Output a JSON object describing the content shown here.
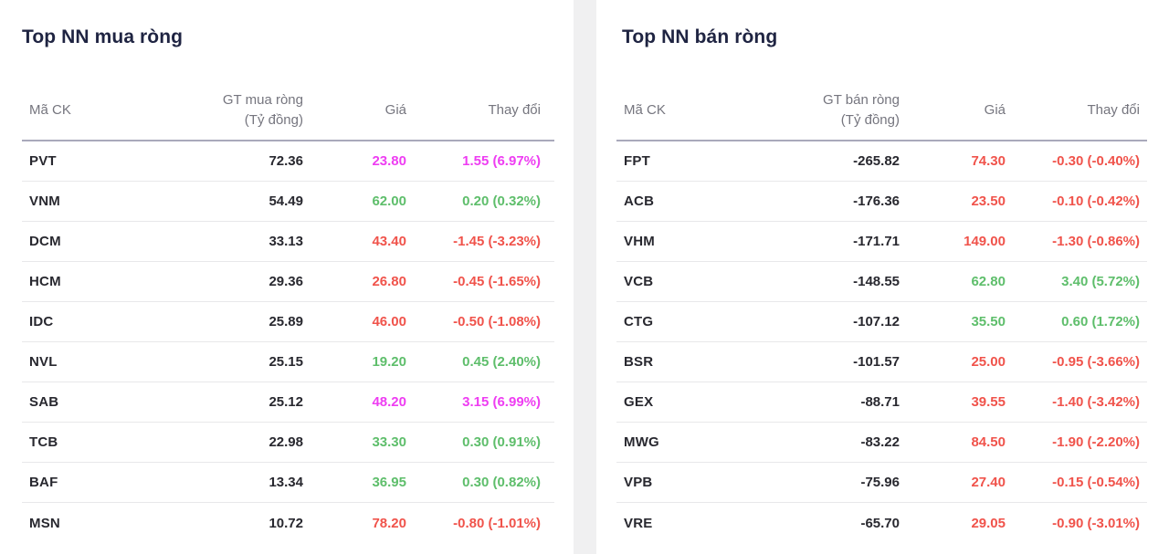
{
  "colors": {
    "up": "#5ebe6b",
    "down": "#f0534b",
    "ceiling": "#ee3df2",
    "title": "#1f2442",
    "muted": "#75757e",
    "dark": "#28282f",
    "underline": "#a9a9bb",
    "rowline": "#e8e8ea",
    "gap": "#f0f0f1"
  },
  "panels": [
    {
      "title": "Top NN mua ròng",
      "columns": {
        "ticker": "Mã CK",
        "value_line1": "GT mua ròng",
        "value_line2": "(Tỷ đồng)",
        "price": "Giá",
        "change": "Thay đổi"
      },
      "rows": [
        {
          "ticker": "PVT",
          "value": "72.36",
          "price": "23.80",
          "change": "1.55 (6.97%)",
          "state": "ceiling"
        },
        {
          "ticker": "VNM",
          "value": "54.49",
          "price": "62.00",
          "change": "0.20 (0.32%)",
          "state": "up"
        },
        {
          "ticker": "DCM",
          "value": "33.13",
          "price": "43.40",
          "change": "-1.45 (-3.23%)",
          "state": "down"
        },
        {
          "ticker": "HCM",
          "value": "29.36",
          "price": "26.80",
          "change": "-0.45 (-1.65%)",
          "state": "down"
        },
        {
          "ticker": "IDC",
          "value": "25.89",
          "price": "46.00",
          "change": "-0.50 (-1.08%)",
          "state": "down"
        },
        {
          "ticker": "NVL",
          "value": "25.15",
          "price": "19.20",
          "change": "0.45 (2.40%)",
          "state": "up"
        },
        {
          "ticker": "SAB",
          "value": "25.12",
          "price": "48.20",
          "change": "3.15 (6.99%)",
          "state": "ceiling"
        },
        {
          "ticker": "TCB",
          "value": "22.98",
          "price": "33.30",
          "change": "0.30 (0.91%)",
          "state": "up"
        },
        {
          "ticker": "BAF",
          "value": "13.34",
          "price": "36.95",
          "change": "0.30 (0.82%)",
          "state": "up"
        },
        {
          "ticker": "MSN",
          "value": "10.72",
          "price": "78.20",
          "change": "-0.80 (-1.01%)",
          "state": "down"
        }
      ]
    },
    {
      "title": "Top NN bán ròng",
      "columns": {
        "ticker": "Mã CK",
        "value_line1": "GT bán ròng",
        "value_line2": "(Tỷ đồng)",
        "price": "Giá",
        "change": "Thay đổi"
      },
      "rows": [
        {
          "ticker": "FPT",
          "value": "-265.82",
          "price": "74.30",
          "change": "-0.30 (-0.40%)",
          "state": "down"
        },
        {
          "ticker": "ACB",
          "value": "-176.36",
          "price": "23.50",
          "change": "-0.10 (-0.42%)",
          "state": "down"
        },
        {
          "ticker": "VHM",
          "value": "-171.71",
          "price": "149.00",
          "change": "-1.30 (-0.86%)",
          "state": "down"
        },
        {
          "ticker": "VCB",
          "value": "-148.55",
          "price": "62.80",
          "change": "3.40 (5.72%)",
          "state": "up"
        },
        {
          "ticker": "CTG",
          "value": "-107.12",
          "price": "35.50",
          "change": "0.60 (1.72%)",
          "state": "up"
        },
        {
          "ticker": "BSR",
          "value": "-101.57",
          "price": "25.00",
          "change": "-0.95 (-3.66%)",
          "state": "down"
        },
        {
          "ticker": "GEX",
          "value": "-88.71",
          "price": "39.55",
          "change": "-1.40 (-3.42%)",
          "state": "down"
        },
        {
          "ticker": "MWG",
          "value": "-83.22",
          "price": "84.50",
          "change": "-1.90 (-2.20%)",
          "state": "down"
        },
        {
          "ticker": "VPB",
          "value": "-75.96",
          "price": "27.40",
          "change": "-0.15 (-0.54%)",
          "state": "down"
        },
        {
          "ticker": "VRE",
          "value": "-65.70",
          "price": "29.05",
          "change": "-0.90 (-3.01%)",
          "state": "down"
        }
      ]
    }
  ]
}
